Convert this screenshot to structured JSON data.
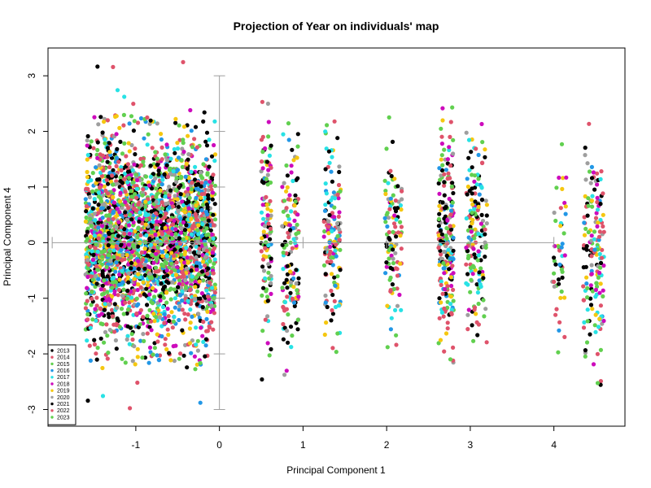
{
  "chart_data": {
    "type": "scatter",
    "title": "Projection of Year on individuals' map",
    "xlabel": "Principal Component 1",
    "ylabel": "Principal Component 4",
    "xlim": [
      -2.05,
      4.85
    ],
    "ylim": [
      -3.3,
      3.5
    ],
    "xticks": [
      "-1",
      "0",
      "1",
      "2",
      "3",
      "4"
    ],
    "yticks": [
      "-3",
      "-2",
      "-1",
      "0",
      "1",
      "2",
      "3"
    ],
    "grid": false,
    "legend_position": "bottom-left",
    "mean_bars": {
      "x_range": [
        -2.0,
        4.0
      ],
      "y_range": [
        -3.0,
        3.0
      ],
      "color": "#9e9e9e"
    },
    "series": [
      {
        "name": "2013",
        "color": "#000000"
      },
      {
        "name": "2014",
        "color": "#df536b"
      },
      {
        "name": "2015",
        "color": "#61d04f"
      },
      {
        "name": "2016",
        "color": "#2297e6"
      },
      {
        "name": "2017",
        "color": "#28e2e5"
      },
      {
        "name": "2018",
        "color": "#cd0bbc"
      },
      {
        "name": "2019",
        "color": "#f5c710"
      },
      {
        "name": "2020",
        "color": "#9e9e9e"
      },
      {
        "name": "2021",
        "color": "#000000"
      },
      {
        "name": "2022",
        "color": "#df536b"
      },
      {
        "name": "2023",
        "color": "#61d04f"
      }
    ],
    "point_clusters": [
      {
        "x_range": [
          -1.6,
          -0.05
        ],
        "y_range": [
          -2.2,
          2.3
        ],
        "density": 2600
      },
      {
        "x_range": [
          -1.6,
          -0.05
        ],
        "y_range": [
          -3.0,
          3.3
        ],
        "density": 200
      },
      {
        "x_range": [
          0.5,
          0.62
        ],
        "y_range": [
          -2.5,
          2.6
        ],
        "density": 120
      },
      {
        "x_range": [
          0.75,
          0.95
        ],
        "y_range": [
          -2.4,
          2.2
        ],
        "density": 140
      },
      {
        "x_range": [
          1.25,
          1.45
        ],
        "y_range": [
          -2.0,
          2.2
        ],
        "density": 150
      },
      {
        "x_range": [
          1.98,
          2.18
        ],
        "y_range": [
          -1.9,
          2.3
        ],
        "density": 110
      },
      {
        "x_range": [
          2.62,
          2.8
        ],
        "y_range": [
          -2.3,
          2.5
        ],
        "density": 220
      },
      {
        "x_range": [
          2.95,
          3.2
        ],
        "y_range": [
          -1.8,
          2.2
        ],
        "density": 170
      },
      {
        "x_range": [
          3.98,
          4.15
        ],
        "y_range": [
          -2.1,
          1.8
        ],
        "density": 50
      },
      {
        "x_range": [
          4.35,
          4.6
        ],
        "y_range": [
          -2.6,
          2.2
        ],
        "density": 160
      }
    ]
  }
}
